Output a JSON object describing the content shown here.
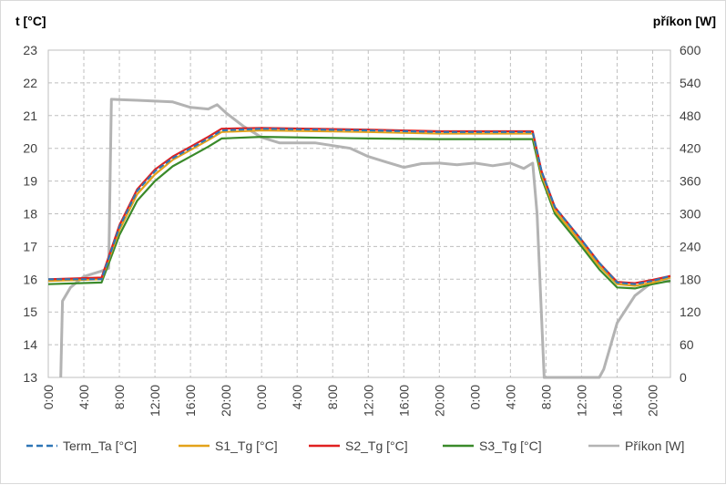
{
  "chart_data": {
    "type": "line",
    "y_left_label": "t [°C]",
    "y_right_label": "příkon [W]",
    "ylim_left": [
      13,
      23
    ],
    "ylim_right": [
      0,
      600
    ],
    "y_left_ticks": [
      "13",
      "14",
      "15",
      "16",
      "17",
      "18",
      "19",
      "20",
      "21",
      "22",
      "23"
    ],
    "y_right_ticks": [
      "0",
      "60",
      "120",
      "180",
      "240",
      "300",
      "360",
      "420",
      "480",
      "540",
      "600"
    ],
    "x_ticks": [
      "0:00",
      "4:00",
      "8:00",
      "12:00",
      "16:00",
      "20:00",
      "0:00",
      "4:00",
      "8:00",
      "12:00",
      "16:00",
      "20:00",
      "0:00",
      "4:00",
      "8:00",
      "12:00",
      "16:00",
      "20:00"
    ],
    "x_hours_range": [
      0,
      70
    ],
    "grid": true,
    "legend_position": "bottom",
    "series": [
      {
        "name": "Term_Ta [°C]",
        "axis": "left",
        "color": "#2e75b6",
        "dash": true,
        "points": [
          [
            0,
            16.0
          ],
          [
            6.0,
            16.0
          ],
          [
            8.0,
            17.6
          ],
          [
            10.0,
            18.7
          ],
          [
            12.0,
            19.3
          ],
          [
            14.0,
            19.7
          ],
          [
            16.0,
            20.0
          ],
          [
            18.0,
            20.3
          ],
          [
            19.5,
            20.55
          ],
          [
            24.0,
            20.6
          ],
          [
            36.0,
            20.55
          ],
          [
            44.0,
            20.5
          ],
          [
            54.5,
            20.5
          ],
          [
            55.5,
            19.3
          ],
          [
            57.0,
            18.2
          ],
          [
            60.0,
            17.2
          ],
          [
            62.0,
            16.5
          ],
          [
            64.0,
            15.9
          ],
          [
            66.0,
            15.85
          ],
          [
            68.0,
            15.95
          ],
          [
            70.0,
            16.1
          ]
        ]
      },
      {
        "name": "S1_Tg [°C]",
        "axis": "left",
        "color": "#e3a21a",
        "dash": false,
        "points": [
          [
            0,
            15.95
          ],
          [
            6.0,
            16.0
          ],
          [
            8.0,
            17.5
          ],
          [
            10.0,
            18.6
          ],
          [
            12.0,
            19.2
          ],
          [
            14.0,
            19.65
          ],
          [
            16.0,
            19.95
          ],
          [
            18.0,
            20.25
          ],
          [
            19.5,
            20.5
          ],
          [
            24.0,
            20.55
          ],
          [
            36.0,
            20.5
          ],
          [
            44.0,
            20.45
          ],
          [
            54.5,
            20.45
          ],
          [
            55.5,
            19.2
          ],
          [
            57.0,
            18.1
          ],
          [
            60.0,
            17.1
          ],
          [
            62.0,
            16.4
          ],
          [
            64.0,
            15.85
          ],
          [
            66.0,
            15.8
          ],
          [
            68.0,
            15.9
          ],
          [
            70.0,
            16.05
          ]
        ]
      },
      {
        "name": "S2_Tg [°C]",
        "axis": "left",
        "color": "#e02020",
        "dash": false,
        "points": [
          [
            0,
            16.0
          ],
          [
            6.0,
            16.05
          ],
          [
            8.0,
            17.65
          ],
          [
            10.0,
            18.75
          ],
          [
            12.0,
            19.35
          ],
          [
            14.0,
            19.75
          ],
          [
            16.0,
            20.05
          ],
          [
            18.0,
            20.35
          ],
          [
            19.5,
            20.6
          ],
          [
            24.0,
            20.62
          ],
          [
            36.0,
            20.57
          ],
          [
            44.0,
            20.52
          ],
          [
            54.5,
            20.52
          ],
          [
            55.5,
            19.3
          ],
          [
            57.0,
            18.2
          ],
          [
            60.0,
            17.2
          ],
          [
            62.0,
            16.5
          ],
          [
            64.0,
            15.92
          ],
          [
            66.0,
            15.88
          ],
          [
            68.0,
            15.98
          ],
          [
            70.0,
            16.1
          ]
        ]
      },
      {
        "name": "S3_Tg [°C]",
        "axis": "left",
        "color": "#3a8a2a",
        "dash": false,
        "points": [
          [
            0,
            15.85
          ],
          [
            6.0,
            15.9
          ],
          [
            8.0,
            17.35
          ],
          [
            10.0,
            18.4
          ],
          [
            12.0,
            19.0
          ],
          [
            14.0,
            19.45
          ],
          [
            16.0,
            19.75
          ],
          [
            18.0,
            20.05
          ],
          [
            19.5,
            20.3
          ],
          [
            24.0,
            20.35
          ],
          [
            36.0,
            20.3
          ],
          [
            44.0,
            20.28
          ],
          [
            54.5,
            20.28
          ],
          [
            55.5,
            19.1
          ],
          [
            57.0,
            18.0
          ],
          [
            60.0,
            17.0
          ],
          [
            62.0,
            16.3
          ],
          [
            64.0,
            15.75
          ],
          [
            66.0,
            15.72
          ],
          [
            68.0,
            15.85
          ],
          [
            70.0,
            15.95
          ]
        ]
      },
      {
        "name": "Příkon [W]",
        "axis": "right",
        "color": "#b3b3b3",
        "dash": false,
        "points": [
          [
            1.4,
            0
          ],
          [
            1.6,
            140
          ],
          [
            2.5,
            165
          ],
          [
            4.0,
            185
          ],
          [
            6.0,
            195
          ],
          [
            6.8,
            200
          ],
          [
            7.1,
            510
          ],
          [
            10.0,
            508
          ],
          [
            14.0,
            505
          ],
          [
            16.0,
            495
          ],
          [
            18.0,
            492
          ],
          [
            19.0,
            500
          ],
          [
            20.0,
            485
          ],
          [
            22.0,
            460
          ],
          [
            24.0,
            440
          ],
          [
            26.0,
            430
          ],
          [
            28.0,
            430
          ],
          [
            30.0,
            430
          ],
          [
            32.0,
            425
          ],
          [
            34.0,
            420
          ],
          [
            36.0,
            405
          ],
          [
            38.0,
            395
          ],
          [
            40.0,
            385
          ],
          [
            42.0,
            392
          ],
          [
            44.0,
            393
          ],
          [
            46.0,
            390
          ],
          [
            48.0,
            393
          ],
          [
            50.0,
            388
          ],
          [
            52.0,
            393
          ],
          [
            53.5,
            383
          ],
          [
            54.5,
            393
          ],
          [
            55.0,
            300
          ],
          [
            55.8,
            0
          ],
          [
            62.0,
            0
          ],
          [
            62.5,
            15
          ],
          [
            64.0,
            100
          ],
          [
            66.0,
            150
          ],
          [
            68.0,
            175
          ],
          [
            69.0,
            180
          ],
          [
            70.0,
            175
          ]
        ]
      }
    ]
  }
}
